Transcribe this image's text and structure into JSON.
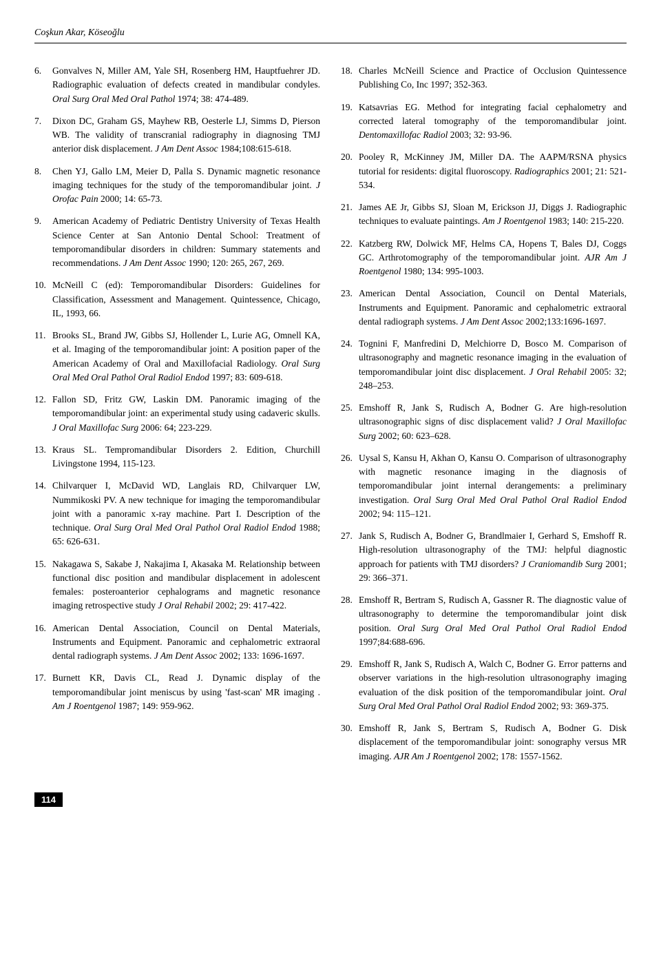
{
  "header": {
    "authors": "Coşkun Akar, Köseoğlu"
  },
  "page_number": "114",
  "refs": [
    {
      "n": "6.",
      "text": "Gonvalves N, Miller AM, Yale SH, Rosenberg HM, Hauptfuehrer JD. Radiographic evaluation of defects created in mandibular condyles. <em>Oral Surg Oral Med Oral Pathol</em> 1974; 38: 474-489."
    },
    {
      "n": "7.",
      "text": "Dixon DC, Graham GS, Mayhew RB, Oesterle LJ, Simms D, Pierson WB. The validity of transcranial radiography in diagnosing TMJ anterior disk displacement. <em>J Am Dent Assoc</em> 1984;108:615-618."
    },
    {
      "n": "8.",
      "text": "Chen YJ, Gallo LM, Meier D, Palla S. Dynamic magnetic resonance imaging techniques for the study of the temporomandibular joint. <em>J Orofac Pain</em> 2000; 14: 65-73."
    },
    {
      "n": "9.",
      "text": "American Academy of Pediatric Dentistry University of Texas Health Science Center at San Antonio Dental School: Treatment of temporomandibular disorders in children: Summary statements and recommendations. <em>J Am Dent Assoc</em> 1990; 120: 265, 267, 269."
    },
    {
      "n": "10.",
      "text": "McNeill C (ed): Temporomandibular Disorders: Guidelines for Classification, Assessment and Management. Quintessence, Chicago, IL, 1993, 66."
    },
    {
      "n": "11.",
      "text": "Brooks SL, Brand JW, Gibbs SJ, Hollender L, Lurie AG, Omnell KA, et al. Imaging of the temporomandibular joint: A position paper of the American Academy of Oral and Maxillofacial Radiology. <em>Oral Surg Oral Med Oral Pathol Oral Radiol Endod</em> 1997; 83: 609-618."
    },
    {
      "n": "12.",
      "text": " Fallon SD, Fritz GW, Laskin DM. Panoramic imaging of the temporomandibular joint: an experimental study using cadaveric skulls. <em>J Oral Maxillofac Surg</em> 2006: 64; 223-229."
    },
    {
      "n": "13.",
      "text": "Kraus SL. Tempromandibular Disorders 2. Edition, Churchill Livingstone 1994, 115-123."
    },
    {
      "n": "14.",
      "text": "Chilvarquer I, McDavid WD, Langlais RD, Chilvarquer LW, Nummikoski PV. A new technique for imaging the temporomandibular joint with a panoramic x-ray machine. Part I. Description of the technique. <em>Oral Surg Oral Med Oral Pathol Oral Radiol Endod</em> 1988; 65: 626-631."
    },
    {
      "n": "15.",
      "text": "Nakagawa S, Sakabe J, Nakajima I, Akasaka M. Relationship between functional disc position and mandibular displacement in adolescent females: posteroanterior cephalograms and magnetic resonance imaging retrospective study <em>J Oral Rehabil</em> 2002; 29: 417-422."
    },
    {
      "n": "16.",
      "text": "American Dental Association, Council on Dental Materials, Instruments and Equipment. Panoramic and cephalometric extraoral dental radiograph systems. <em>J Am Dent Assoc</em> 2002; 133: 1696-1697."
    },
    {
      "n": "17.",
      "text": "Burnett KR, Davis CL, Read J. Dynamic display of the temporomandibular joint meniscus by using 'fast-scan' MR imaging . <em>Am J Roentgenol</em> 1987; 149: 959-962."
    },
    {
      "n": "18.",
      "text": "Charles McNeill Science and Practice of Occlusion Quintessence Publishing Co, Inc 1997; 352-363."
    },
    {
      "n": "19.",
      "text": "Katsavrias EG. Method for integrating facial cephalometry and corrected lateral tomography of the temporomandibular joint. <em>Dentomaxillofac Radiol</em> 2003; 32: 93-96."
    },
    {
      "n": "20.",
      "text": "Pooley R, McKinney JM, Miller DA. The AAPM/RSNA physics tutorial for residents: digital fluoroscopy. <em>Radiographics</em> 2001; 21: 521-534."
    },
    {
      "n": "21.",
      "text": "James AE Jr, Gibbs SJ, Sloan M, Erickson JJ, Diggs J. Radiographic techniques to evaluate paintings. <em>Am J Roentgenol</em> 1983; 140: 215-220."
    },
    {
      "n": "22.",
      "text": "Katzberg RW, Dolwick MF, Helms CA, Hopens T, Bales DJ, Coggs GC. Arthrotomography of the temporomandibular joint. <em>AJR Am J Roentgenol</em> 1980; 134: 995-1003."
    },
    {
      "n": "23.",
      "text": "American Dental Association, Council on Dental Materials, Instruments and Equipment. Panoramic and cephalometric extraoral dental radiograph systems. <em>J Am Dent Assoc</em> 2002;133:1696-1697."
    },
    {
      "n": "24.",
      "text": "Tognini F, Manfredini D, Melchiorre D, Bosco M. Comparison of ultrasonography and magnetic resonance imaging in the evaluation of temporomandibular joint disc displacement. <em>J Oral Rehabil</em> 2005: 32; 248–253."
    },
    {
      "n": "25.",
      "text": "Emshoff R, Jank S, Rudisch A, Bodner G. Are high-resolution ultrasonographic signs of disc displacement valid? <em>J Oral Maxillofac Surg</em> 2002; 60: 623–628."
    },
    {
      "n": "26.",
      "text": "Uysal S, Kansu H, Akhan O, Kansu O. Comparison of ultrasonography with magnetic resonance imaging in the diagnosis of temporomandibular joint internal derangements: a preliminary investigation. <em>Oral Surg Oral Med Oral Pathol Oral Radiol Endod</em> 2002; 94: 115–121."
    },
    {
      "n": "27.",
      "text": "Jank S, Rudisch A, Bodner G, Brandlmaier I, Gerhard S, Emshoff R. High-resolution ultrasonography of the TMJ: helpful diagnostic approach for patients with TMJ disorders? <em>J Craniomandib Surg</em> 2001; 29: 366–371."
    },
    {
      "n": "28.",
      "text": "Emshoff R, Bertram S, Rudisch A, Gassner R. The diagnostic value of ultrasonography to determine the temporomandibular joint disk position. <em>Oral Surg Oral Med Oral Pathol Oral Radiol Endod</em> 1997;84:688-696."
    },
    {
      "n": "29.",
      "text": "Emshoff R, Jank S, Rudisch A, Walch C, Bodner G. Error patterns and observer variations in the high-resolution ultrasonography imaging evaluation of the disk position of the temporomandibular joint. <em>Oral Surg Oral Med Oral Pathol Oral Radiol Endod</em> 2002; 93: 369-375."
    },
    {
      "n": "30.",
      "text": " Emshoff R, Jank S, Bertram S, Rudisch A, Bodner G. Disk displacement of the temporomandibular joint: sonography versus MR imaging. <em>AJR Am J Roentgenol</em> 2002; 178: 1557-1562."
    }
  ],
  "split_index": 12
}
